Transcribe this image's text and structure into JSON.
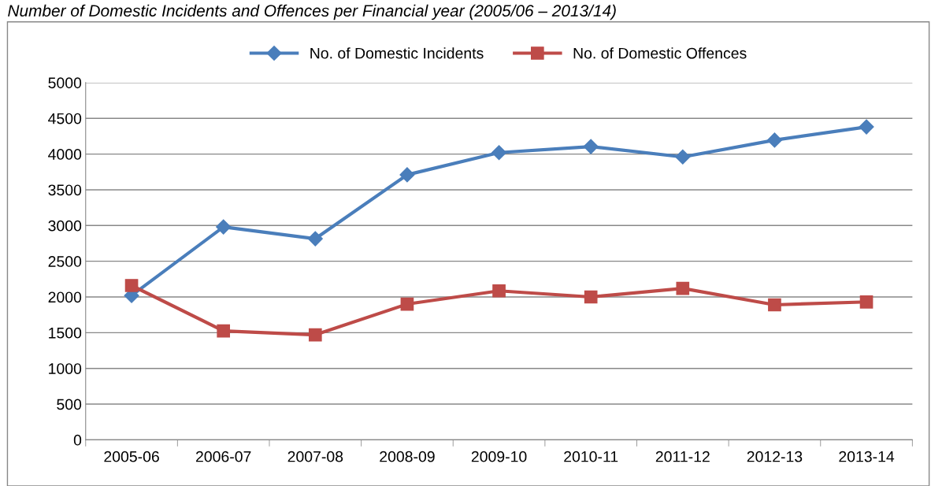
{
  "chart_data": {
    "type": "line",
    "title": "Number of Domestic Incidents and Offences per Financial year (2005/06 – 2013/14)",
    "categories": [
      "2005-06",
      "2006-07",
      "2007-08",
      "2008-09",
      "2009-10",
      "2010-11",
      "2011-12",
      "2012-13",
      "2013-14"
    ],
    "series": [
      {
        "name": "No. of Domestic Incidents",
        "color": "#4a7ebb",
        "marker": "diamond",
        "values": [
          2020,
          2980,
          2815,
          3710,
          4020,
          4105,
          3960,
          4195,
          4380
        ]
      },
      {
        "name": "No. of Domestic Offences",
        "color": "#be4b48",
        "marker": "square",
        "values": [
          2160,
          1525,
          1470,
          1900,
          2085,
          2000,
          2120,
          1890,
          1930
        ]
      }
    ],
    "ylim": [
      0,
      5000
    ],
    "yticks": [
      0,
      500,
      1000,
      1500,
      2000,
      2500,
      3000,
      3500,
      4000,
      4500,
      5000
    ],
    "grid": "y",
    "legend": "top",
    "line_style": "solid"
  }
}
